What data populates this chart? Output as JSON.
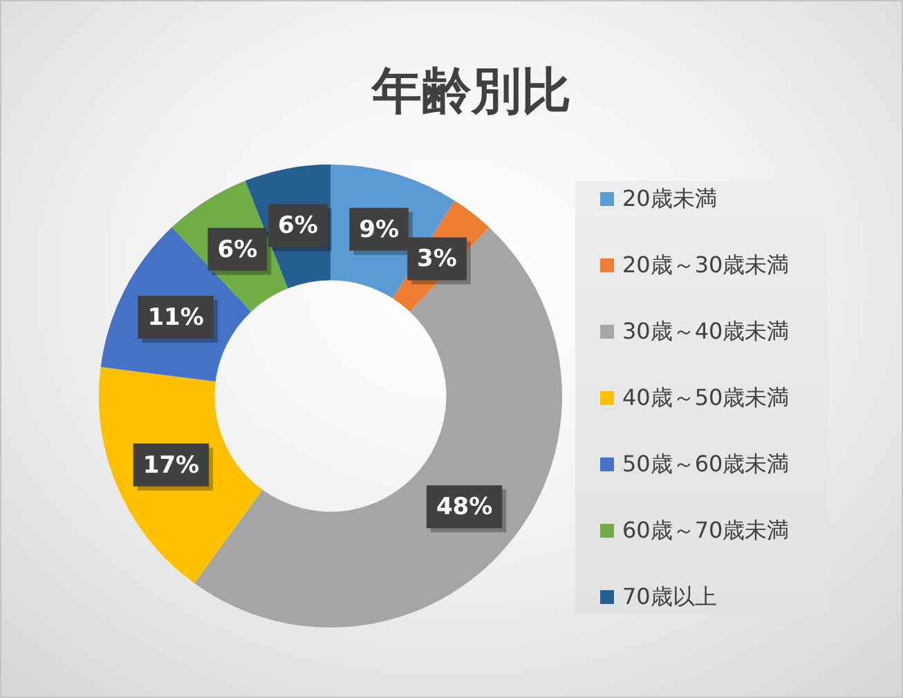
{
  "chart_data": {
    "type": "donut",
    "title": "年齢別比",
    "categories": [
      "20歳未満",
      "20歳～30歳未満",
      "30歳～40歳未満",
      "40歳～50歳未満",
      "50歳～60歳未満",
      "60歳～70歳未満",
      "70歳以上"
    ],
    "values": [
      9,
      3,
      48,
      17,
      11,
      6,
      6
    ],
    "value_labels": [
      "9%",
      "3%",
      "48%",
      "17%",
      "11%",
      "6%",
      "6%"
    ],
    "colors": [
      "#5b9bd5",
      "#ed7d31",
      "#a5a5a5",
      "#ffc000",
      "#4472c4",
      "#70ad47",
      "#255e91"
    ],
    "legend": "right"
  }
}
